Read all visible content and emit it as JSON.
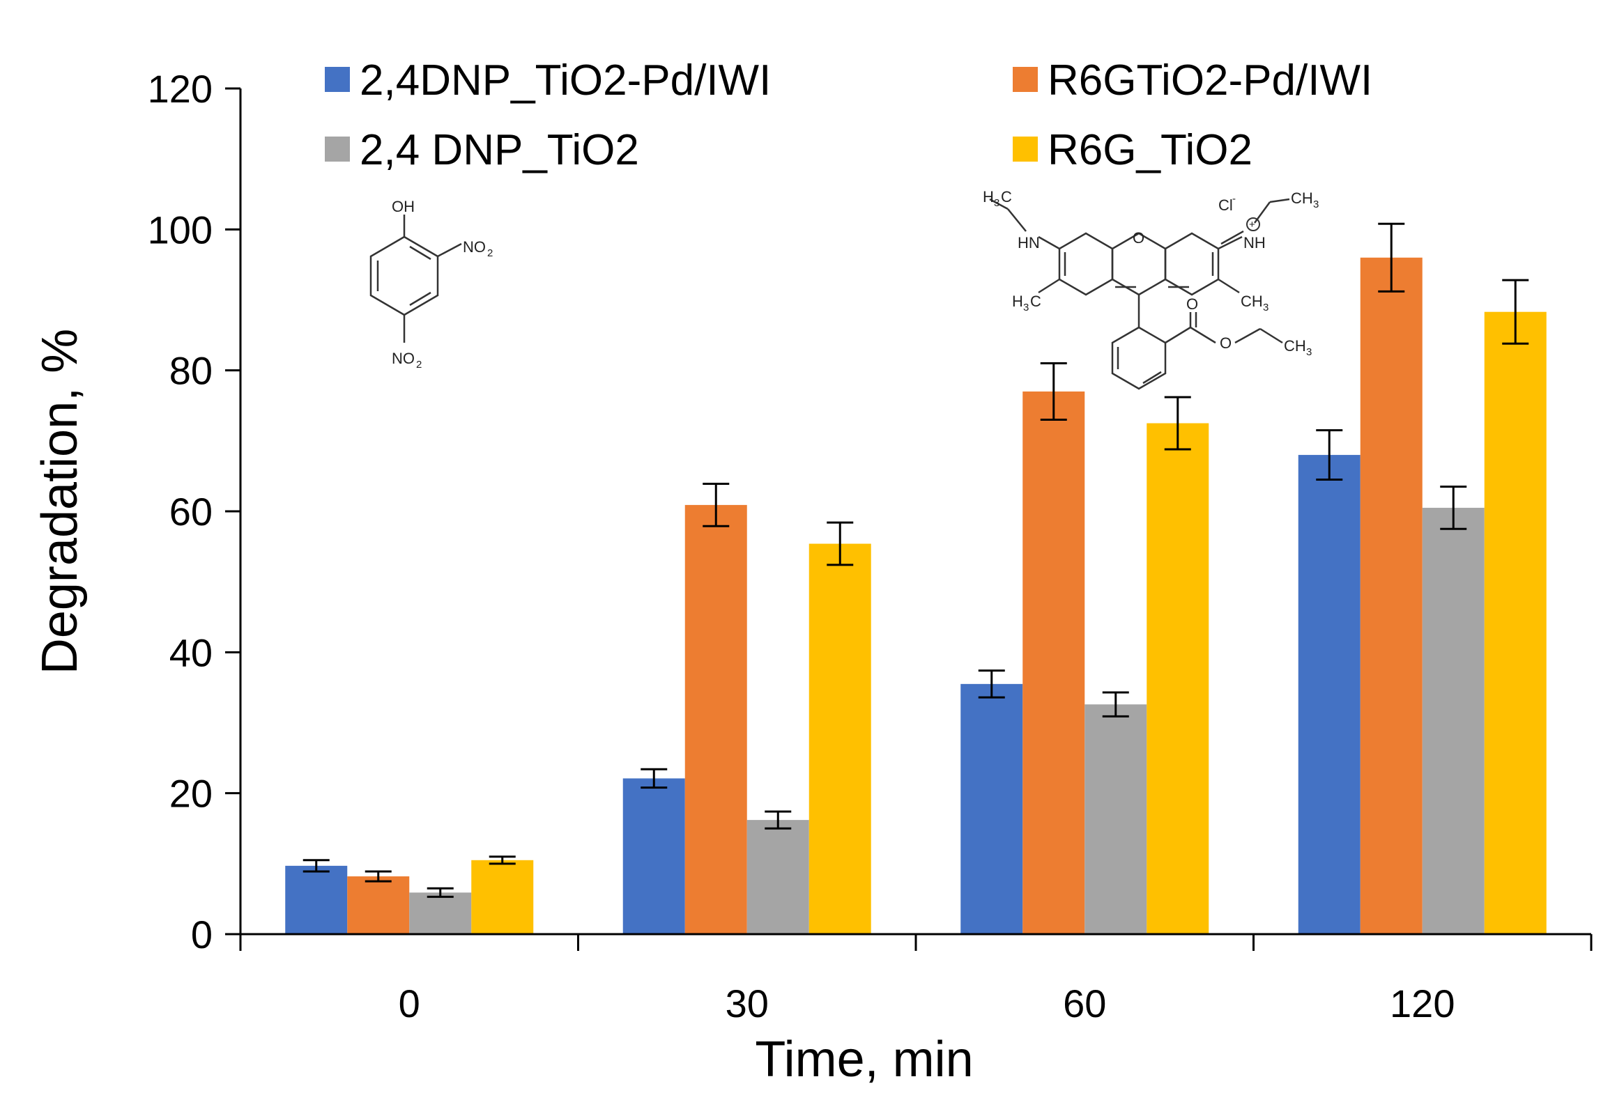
{
  "chart_data": {
    "type": "bar",
    "categories": [
      "0",
      "30",
      "60",
      "120"
    ],
    "series": [
      {
        "name": "2,4DNP_TiO2-Pd/IWI",
        "color": "#4472C4",
        "values": [
          9.7,
          22.1,
          35.5,
          68.0
        ],
        "errors": [
          0.8,
          1.3,
          1.9,
          3.5
        ]
      },
      {
        "name": "R6GTiO2-Pd/IWI",
        "color": "#ED7D31",
        "values": [
          8.2,
          60.9,
          77.0,
          96.0
        ],
        "errors": [
          0.7,
          3.0,
          4.0,
          4.8
        ]
      },
      {
        "name": "2,4 DNP_TiO2",
        "color": "#A5A5A5",
        "values": [
          5.9,
          16.2,
          32.6,
          60.5
        ],
        "errors": [
          0.6,
          1.2,
          1.7,
          3.0
        ]
      },
      {
        "name": "R6G_TiO2",
        "color": "#FFC000",
        "values": [
          10.5,
          55.4,
          72.5,
          88.3
        ],
        "errors": [
          0.5,
          3.0,
          3.7,
          4.5
        ]
      }
    ],
    "xlabel": "Time, min",
    "ylabel": "Degradation, %",
    "ylim": [
      0,
      120
    ],
    "yticks": [
      "0",
      "20",
      "40",
      "60",
      "80",
      "100",
      "120"
    ],
    "grid": false,
    "legend_position": "top"
  },
  "annotations": {
    "dnp": {
      "oh": "OH",
      "no2_top": "NO",
      "no2_top_sub": "2",
      "no2_bottom": "NO",
      "no2_bottom_sub": "2"
    },
    "r6g": {
      "h3c_top": "H",
      "h3c_top_sub": "3",
      "h3c_top_c": "C",
      "ch3_top": "CH",
      "ch3_top_sub": "3",
      "cl": "Cl",
      "cl_sup": "-",
      "plus": "+",
      "hn": "HN",
      "nh": "NH",
      "o_ring": "O",
      "h3c_bot": "H",
      "h3c_bot_sub": "3",
      "h3c_bot_c": "C",
      "ch3_bot": "CH",
      "ch3_bot_sub": "3",
      "o_carbonyl": "O",
      "o_ester": "O",
      "ch3_ester": "CH",
      "ch3_ester_sub": "3"
    }
  }
}
